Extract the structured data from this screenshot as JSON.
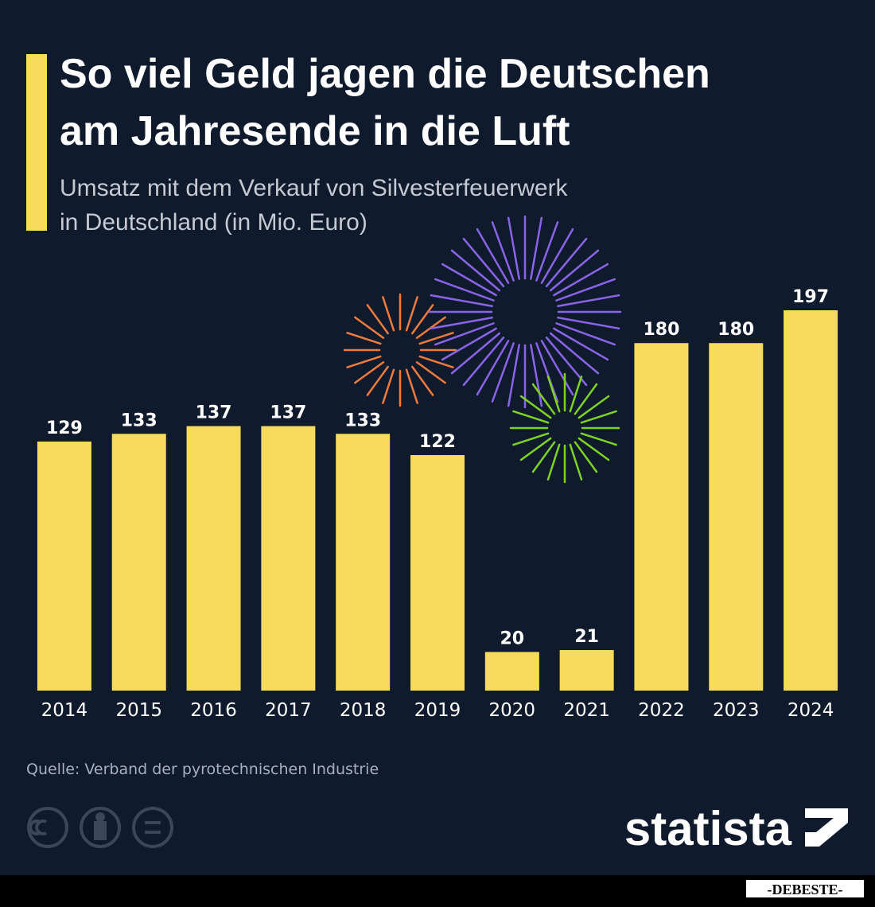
{
  "chart_data": {
    "type": "bar",
    "title": [
      "So viel Geld jagen die Deutschen",
      "am Jahresende in die Luft"
    ],
    "subtitle": [
      "Umsatz mit dem Verkauf von Silvesterfeuerwerk",
      "in Deutschland (in Mio. Euro)"
    ],
    "categories": [
      "2014",
      "2015",
      "2016",
      "2017",
      "2018",
      "2019",
      "2020",
      "2021",
      "2022",
      "2023",
      "2024"
    ],
    "values": [
      129,
      133,
      137,
      137,
      133,
      122,
      20,
      21,
      180,
      180,
      197
    ],
    "color": "#f7dc5c",
    "source": "Quelle: Verband der pyrotechnischen Industrie",
    "brand": "statista",
    "watermark": "-DEBESTE-"
  }
}
